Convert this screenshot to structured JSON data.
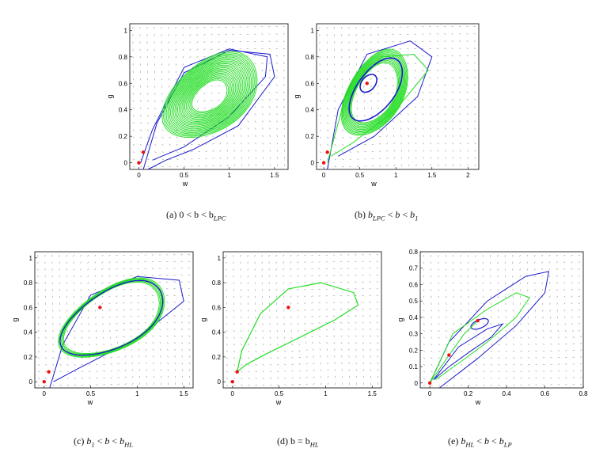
{
  "figure": {
    "panels": [
      {
        "id": "a",
        "caption": {
          "label": "(a)",
          "text": "0 < b < b",
          "sub": "LPC"
        },
        "xlabel": "w",
        "ylabel": "g",
        "xticks": [
          "0",
          "0.5",
          "1",
          "1.5"
        ],
        "yticks": [
          "0",
          "0.2",
          "0.4",
          "0.6",
          "0.8",
          "1"
        ],
        "xlim": [
          -0.1,
          1.65
        ],
        "ylim": [
          -0.05,
          1.05
        ],
        "equilibria": [
          {
            "w": 0,
            "g": 0
          },
          {
            "w": 0.05,
            "g": 0.08
          }
        ]
      },
      {
        "id": "b",
        "caption": {
          "label": "(b)",
          "text": "b < b < b",
          "sub1": "LPC",
          "sub2": "1"
        },
        "xlabel": "w",
        "ylabel": "g",
        "xticks": [
          "0",
          "0.5",
          "1",
          "1.5",
          "2"
        ],
        "yticks": [
          "0",
          "0.2",
          "0.4",
          "0.6",
          "0.8",
          "1"
        ],
        "xlim": [
          -0.1,
          2.15
        ],
        "ylim": [
          -0.05,
          1.05
        ],
        "equilibria": [
          {
            "w": 0,
            "g": 0
          },
          {
            "w": 0.05,
            "g": 0.08
          },
          {
            "w": 0.6,
            "g": 0.6
          }
        ]
      },
      {
        "id": "c",
        "caption": {
          "label": "(c)",
          "text": "b < b < b",
          "sub1": "1",
          "sub2": "HL"
        },
        "xlabel": "w",
        "ylabel": "g",
        "xticks": [
          "0",
          "0.5",
          "1",
          "1.5"
        ],
        "yticks": [
          "0",
          "0.2",
          "0.4",
          "0.6",
          "0.8",
          "1"
        ],
        "xlim": [
          -0.1,
          1.6
        ],
        "ylim": [
          -0.05,
          1.05
        ],
        "equilibria": [
          {
            "w": 0,
            "g": 0
          },
          {
            "w": 0.05,
            "g": 0.08
          },
          {
            "w": 0.6,
            "g": 0.6
          }
        ]
      },
      {
        "id": "d",
        "caption": {
          "label": "(d)",
          "text": "b = b",
          "sub": "HL"
        },
        "xlabel": "w",
        "ylabel": "g",
        "xticks": [
          "0",
          "0.5",
          "1",
          "1.5"
        ],
        "yticks": [
          "0",
          "0.2",
          "0.4",
          "0.6",
          "0.8",
          "1"
        ],
        "xlim": [
          -0.1,
          1.6
        ],
        "ylim": [
          -0.05,
          1.05
        ],
        "equilibria": [
          {
            "w": 0,
            "g": 0
          },
          {
            "w": 0.05,
            "g": 0.08
          },
          {
            "w": 0.6,
            "g": 0.6
          }
        ]
      },
      {
        "id": "e",
        "caption": {
          "label": "(e)",
          "text": "b < b < b",
          "sub1": "HL",
          "sub2": "LP"
        },
        "xlabel": "w",
        "ylabel": "g",
        "xticks": [
          "0",
          "0.2",
          "0.4",
          "0.6",
          "0.8"
        ],
        "yticks": [
          "0",
          "0.1",
          "0.2",
          "0.3",
          "0.4",
          "0.5",
          "0.6",
          "0.7",
          "0.8"
        ],
        "xlim": [
          -0.05,
          0.8
        ],
        "ylim": [
          -0.03,
          0.8
        ],
        "equilibria": [
          {
            "w": 0,
            "g": 0
          },
          {
            "w": 0.1,
            "g": 0.17
          },
          {
            "w": 0.25,
            "g": 0.38
          }
        ]
      }
    ]
  },
  "colors": {
    "blue": "#1a1acc",
    "green": "#22dd22",
    "red": "#ee1111",
    "arrow": "#9a9a9a"
  }
}
